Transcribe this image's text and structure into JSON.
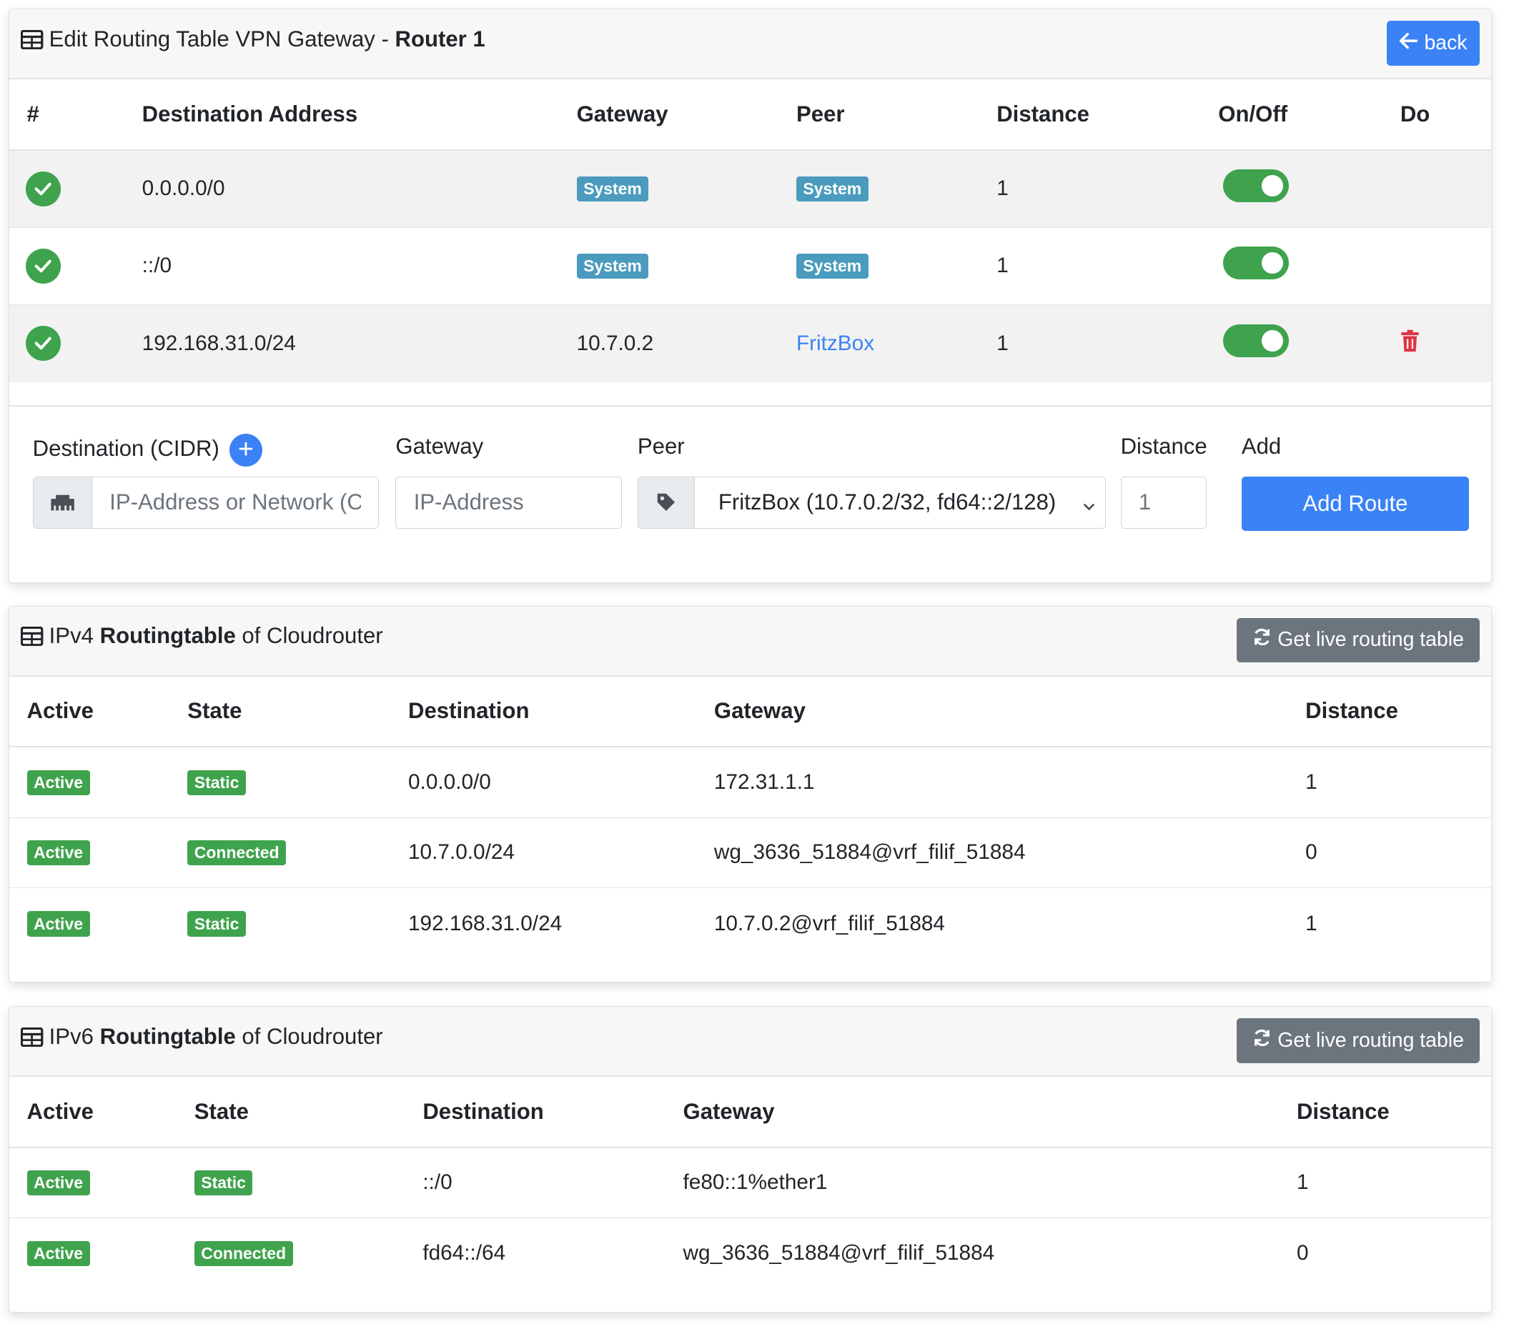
{
  "edit_card": {
    "title_prefix": "Edit Routing Table VPN Gateway - ",
    "title_bold": "Router 1",
    "back_label": "back",
    "columns": [
      "#",
      "Destination Address",
      "Gateway",
      "Peer",
      "Distance",
      "On/Off",
      "Do"
    ],
    "rows": [
      {
        "destination": "0.0.0.0/0",
        "gateway": "System",
        "peer": "System",
        "distance": "1"
      },
      {
        "destination": "::/0",
        "gateway": "System",
        "peer": "System",
        "distance": "1"
      },
      {
        "destination": "192.168.31.0/24",
        "gateway": "10.7.0.2",
        "peer": "FritzBox",
        "distance": "1"
      }
    ],
    "form": {
      "destination_label": "Destination (CIDR)",
      "gateway_label": "Gateway",
      "peer_label": "Peer",
      "distance_label": "Distance",
      "add_label": "Add",
      "destination_placeholder": "IP-Address or Network (CIDR)",
      "gateway_placeholder": "IP-Address",
      "peer_selected": "FritzBox (10.7.0.2/32, fd64::2/128)",
      "distance_value": "1",
      "add_button": "Add Route"
    }
  },
  "ipv4_card": {
    "title_a": "IPv4 ",
    "title_bold": "Routingtable",
    "title_b": " of Cloudrouter",
    "refresh_label": "Get live routing table",
    "columns": [
      "Active",
      "State",
      "Destination",
      "Gateway",
      "Distance"
    ],
    "rows": [
      {
        "active": "Active",
        "state": "Static",
        "destination": "0.0.0.0/0",
        "gateway": "172.31.1.1",
        "distance": "1"
      },
      {
        "active": "Active",
        "state": "Connected",
        "destination": "10.7.0.0/24",
        "gateway": "wg_3636_51884@vrf_filif_51884",
        "distance": "0"
      },
      {
        "active": "Active",
        "state": "Static",
        "destination": "192.168.31.0/24",
        "gateway": "10.7.0.2@vrf_filif_51884",
        "distance": "1"
      }
    ]
  },
  "ipv6_card": {
    "title_a": "IPv6 ",
    "title_bold": "Routingtable",
    "title_b": " of Cloudrouter",
    "refresh_label": "Get live routing table",
    "columns": [
      "Active",
      "State",
      "Destination",
      "Gateway",
      "Distance"
    ],
    "rows": [
      {
        "active": "Active",
        "state": "Static",
        "destination": "::/0",
        "gateway": "fe80::1%ether1",
        "distance": "1"
      },
      {
        "active": "Active",
        "state": "Connected",
        "destination": "fd64::/64",
        "gateway": "wg_3636_51884@vrf_filif_51884",
        "distance": "0"
      }
    ]
  },
  "colors": {
    "primary": "#3b82f6",
    "success": "#3fa34d",
    "info": "#4a9bbd",
    "danger": "#dc3545",
    "secondary": "#6c757d"
  },
  "icons": [
    "table-icon",
    "arrow-left-icon",
    "check-circle-icon",
    "toggle-switch",
    "trash-icon",
    "plus-circle-icon",
    "network-wired-icon",
    "tag-icon",
    "chevron-down-icon",
    "sync-icon"
  ]
}
